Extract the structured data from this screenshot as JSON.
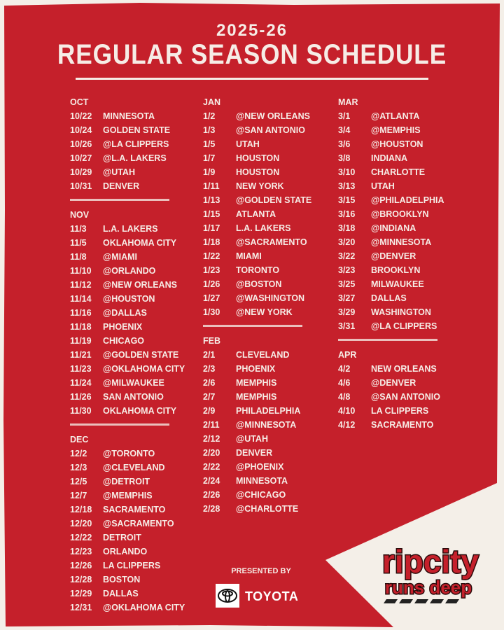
{
  "header": {
    "season": "2025-26",
    "title": "REGULAR SEASON SCHEDULE"
  },
  "colors": {
    "red": "#c5202b",
    "cream": "#f4efe8",
    "text": "#f6ece6"
  },
  "columns": [
    [
      {
        "month": "OCT",
        "games": [
          [
            "10/22",
            "MINNESOTA"
          ],
          [
            "10/24",
            "GOLDEN STATE"
          ],
          [
            "10/26",
            "@LA CLIPPERS"
          ],
          [
            "10/27",
            "@L.A. LAKERS"
          ],
          [
            "10/29",
            "@UTAH"
          ],
          [
            "10/31",
            "DENVER"
          ]
        ]
      },
      {
        "month": "NOV",
        "games": [
          [
            "11/3",
            "L.A. LAKERS"
          ],
          [
            "11/5",
            "OKLAHOMA CITY"
          ],
          [
            "11/8",
            "@MIAMI"
          ],
          [
            "11/10",
            "@ORLANDO"
          ],
          [
            "11/12",
            "@NEW ORLEANS"
          ],
          [
            "11/14",
            "@HOUSTON"
          ],
          [
            "11/16",
            "@DALLAS"
          ],
          [
            "11/18",
            "PHOENIX"
          ],
          [
            "11/19",
            "CHICAGO"
          ],
          [
            "11/21",
            "@GOLDEN STATE"
          ],
          [
            "11/23",
            "@OKLAHOMA CITY"
          ],
          [
            "11/24",
            "@MILWAUKEE"
          ],
          [
            "11/26",
            "SAN ANTONIO"
          ],
          [
            "11/30",
            "OKLAHOMA CITY"
          ]
        ]
      },
      {
        "month": "DEC",
        "games": [
          [
            "12/2",
            "@TORONTO"
          ],
          [
            "12/3",
            "@CLEVELAND"
          ],
          [
            "12/5",
            "@DETROIT"
          ],
          [
            "12/7",
            "@MEMPHIS"
          ],
          [
            "12/18",
            "SACRAMENTO"
          ],
          [
            "12/20",
            "@SACRAMENTO"
          ],
          [
            "12/22",
            "DETROIT"
          ],
          [
            "12/23",
            "ORLANDO"
          ],
          [
            "12/26",
            "LA CLIPPERS"
          ],
          [
            "12/28",
            "BOSTON"
          ],
          [
            "12/29",
            "DALLAS"
          ],
          [
            "12/31",
            "@OKLAHOMA CITY"
          ]
        ]
      }
    ],
    [
      {
        "month": "JAN",
        "games": [
          [
            "1/2",
            "@NEW ORLEANS"
          ],
          [
            "1/3",
            "@SAN ANTONIO"
          ],
          [
            "1/5",
            "UTAH"
          ],
          [
            "1/7",
            "HOUSTON"
          ],
          [
            "1/9",
            "HOUSTON"
          ],
          [
            "1/11",
            "NEW YORK"
          ],
          [
            "1/13",
            "@GOLDEN STATE"
          ],
          [
            "1/15",
            "ATLANTA"
          ],
          [
            "1/17",
            "L.A. LAKERS"
          ],
          [
            "1/18",
            "@SACRAMENTO"
          ],
          [
            "1/22",
            "MIAMI"
          ],
          [
            "1/23",
            "TORONTO"
          ],
          [
            "1/26",
            "@BOSTON"
          ],
          [
            "1/27",
            "@WASHINGTON"
          ],
          [
            "1/30",
            "@NEW YORK"
          ]
        ]
      },
      {
        "month": "FEB",
        "games": [
          [
            "2/1",
            "CLEVELAND"
          ],
          [
            "2/3",
            "PHOENIX"
          ],
          [
            "2/6",
            "MEMPHIS"
          ],
          [
            "2/7",
            "MEMPHIS"
          ],
          [
            "2/9",
            "PHILADELPHIA"
          ],
          [
            "2/11",
            "@MINNESOTA"
          ],
          [
            "2/12",
            "@UTAH"
          ],
          [
            "2/20",
            "DENVER"
          ],
          [
            "2/22",
            "@PHOENIX"
          ],
          [
            "2/24",
            "MINNESOTA"
          ],
          [
            "2/26",
            "@CHICAGO"
          ],
          [
            "2/28",
            "@CHARLOTTE"
          ]
        ]
      }
    ],
    [
      {
        "month": "MAR",
        "games": [
          [
            "3/1",
            "@ATLANTA"
          ],
          [
            "3/4",
            "@MEMPHIS"
          ],
          [
            "3/6",
            "@HOUSTON"
          ],
          [
            "3/8",
            "INDIANA"
          ],
          [
            "3/10",
            "CHARLOTTE"
          ],
          [
            "3/13",
            "UTAH"
          ],
          [
            "3/15",
            "@PHILADELPHIA"
          ],
          [
            "3/16",
            "@BROOKLYN"
          ],
          [
            "3/18",
            "@INDIANA"
          ],
          [
            "3/20",
            "@MINNESOTA"
          ],
          [
            "3/22",
            "@DENVER"
          ],
          [
            "3/23",
            "BROOKLYN"
          ],
          [
            "3/25",
            "MILWAUKEE"
          ],
          [
            "3/27",
            "DALLAS"
          ],
          [
            "3/29",
            "WASHINGTON"
          ],
          [
            "3/31",
            "@LA CLIPPERS"
          ]
        ]
      },
      {
        "month": "APR",
        "games": [
          [
            "4/2",
            "NEW ORLEANS"
          ],
          [
            "4/6",
            "@DENVER"
          ],
          [
            "4/8",
            "@SAN ANTONIO"
          ],
          [
            "4/10",
            "LA CLIPPERS"
          ],
          [
            "4/12",
            "SACRAMENTO"
          ]
        ]
      }
    ]
  ],
  "sponsor": {
    "presented_by": "PRESENTED BY",
    "name": "TOYOTA"
  },
  "logo": {
    "line1": "ripcity",
    "line2": "runs deep"
  }
}
